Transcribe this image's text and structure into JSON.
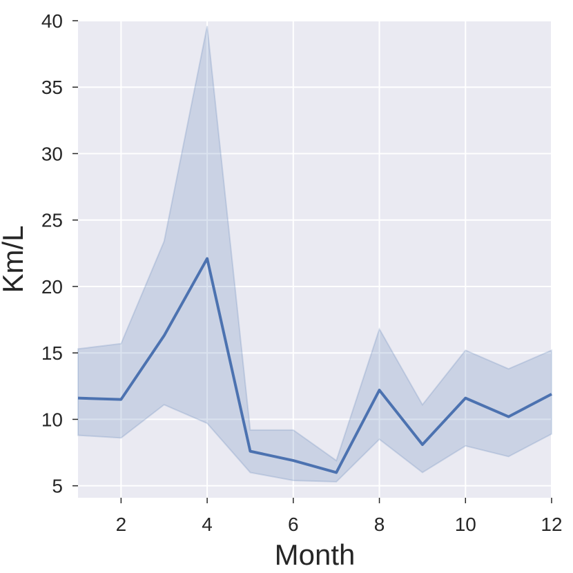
{
  "chart_data": {
    "type": "line",
    "title": "",
    "xlabel": "Month",
    "ylabel": "Km/L",
    "xlim": [
      1,
      12
    ],
    "ylim": [
      4.1,
      40.0
    ],
    "x_ticks": [
      2,
      4,
      6,
      8,
      10,
      12
    ],
    "y_ticks": [
      5,
      10,
      15,
      20,
      25,
      30,
      35,
      40
    ],
    "grid": true,
    "series": [
      {
        "x": [
          1,
          2,
          3,
          4,
          5,
          6,
          7,
          8,
          9,
          10,
          11,
          12
        ],
        "values": [
          11.6,
          11.5,
          16.3,
          22.1,
          7.6,
          6.9,
          6.0,
          12.2,
          8.1,
          11.6,
          10.2,
          11.9
        ],
        "ci_upper": [
          15.3,
          15.7,
          23.4,
          39.6,
          9.2,
          9.2,
          6.9,
          16.8,
          11.1,
          15.2,
          13.8,
          15.2
        ],
        "ci_lower": [
          8.8,
          8.6,
          11.1,
          9.7,
          6.0,
          5.4,
          5.3,
          8.5,
          6.0,
          8.0,
          7.2,
          8.9
        ]
      }
    ],
    "colors": {
      "line": "#4c72b0",
      "band": "#4c72b0",
      "plot_background": "#eaeaf2",
      "grid": "#ffffff",
      "text": "#262626"
    }
  }
}
